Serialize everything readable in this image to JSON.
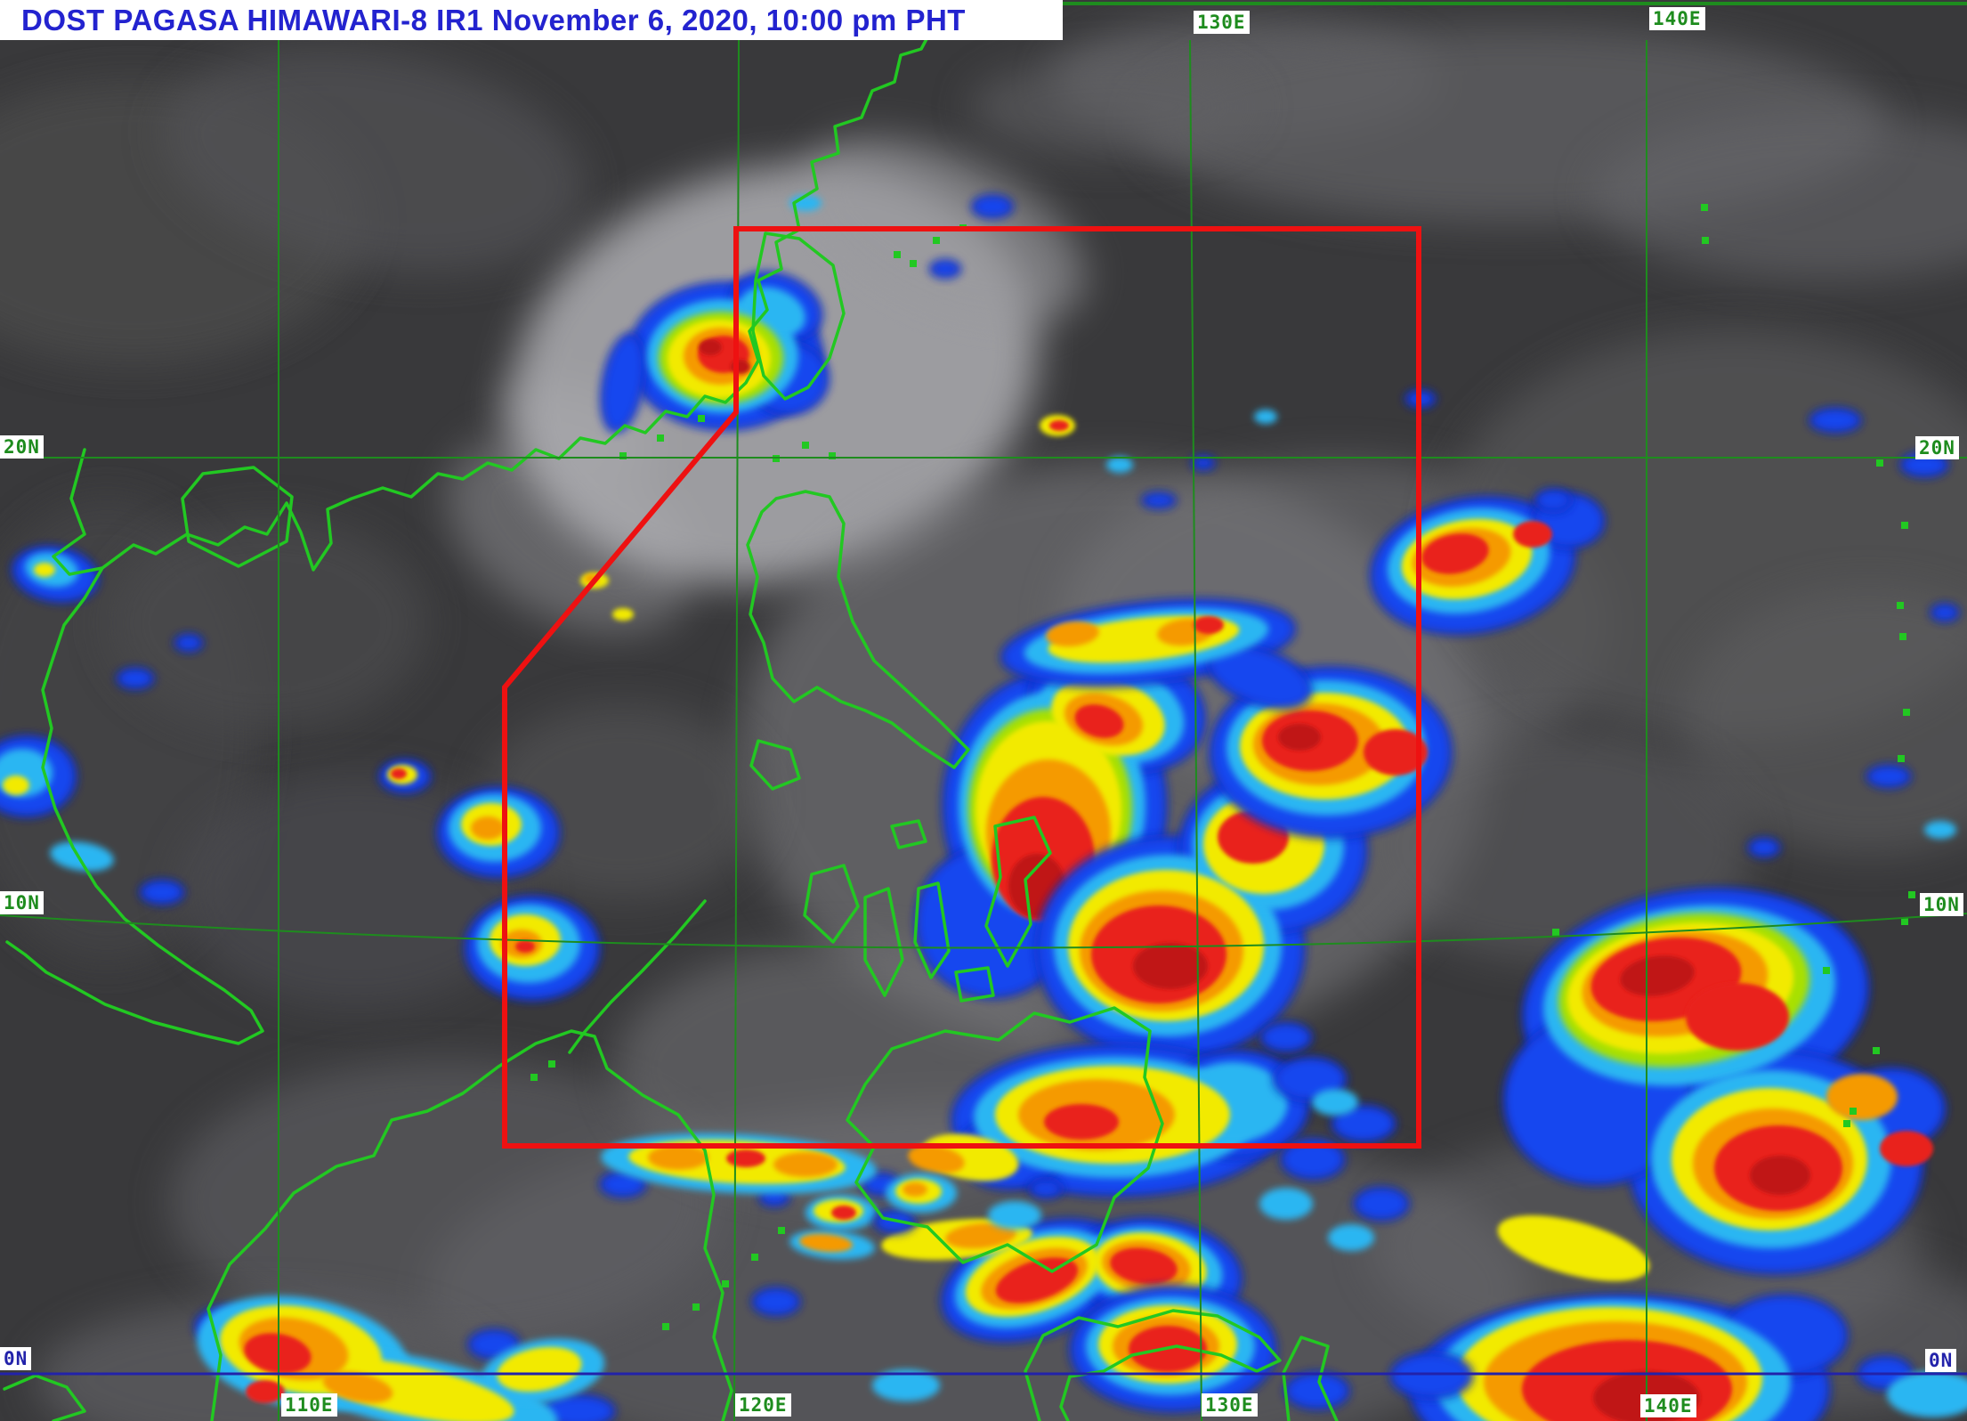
{
  "title_bar": {
    "text": "DOST PAGASA HIMAWARI-8 IR1 November 6, 2020, 10:00 pm PHT"
  },
  "geo_labels": [
    {
      "text": "130E",
      "edge": "top"
    },
    {
      "text": "140E",
      "edge": "top"
    },
    {
      "text": "20N",
      "edge": "left"
    },
    {
      "text": "10N",
      "edge": "left"
    },
    {
      "text": "0N",
      "edge": "left"
    },
    {
      "text": "20N",
      "edge": "right"
    },
    {
      "text": "10N",
      "edge": "right"
    },
    {
      "text": "0N",
      "edge": "right"
    },
    {
      "text": "110E",
      "edge": "bottom"
    },
    {
      "text": "120E",
      "edge": "bottom"
    },
    {
      "text": "130E",
      "edge": "bottom"
    },
    {
      "text": "140E",
      "edge": "bottom"
    }
  ],
  "palette": {
    "title_blue": "#2323cf",
    "title_bg": "#ffffff",
    "label_green": "#1e8c1e",
    "label_navy": "#2222aa",
    "coast_green": "#22c822",
    "grid_green": "#1e8c1e",
    "equator_blue": "#2222aa",
    "par_red": "#ee1111",
    "storm_navy": "#0a1db0",
    "storm_blue": "#1846ef",
    "storm_cyan": "#29b6f2",
    "storm_yellow_green": "#a8e000",
    "storm_yellow": "#f2ea00",
    "storm_orange": "#f59a00",
    "storm_red": "#e9211a",
    "storm_dark_red": "#c01818",
    "ocean_dark": "#39393b"
  }
}
